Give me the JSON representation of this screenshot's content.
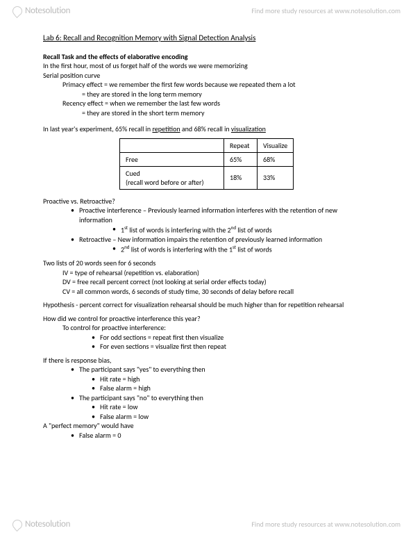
{
  "watermark": {
    "logo_name": "Notesolution",
    "tagline": "Find more study resources at www.notesolution.com"
  },
  "title": "Lab 6: Recall and Recognition Memory with Signal Detection Analysis",
  "recall_section": {
    "heading": "Recall Task and the effects of elaborative encoding",
    "line1": "In the first hour, most of us forget half of the words we were memorizing",
    "line2": "Serial position curve",
    "primacy1": "Primacy effect = we remember the first few words because we repeated them  a lot",
    "primacy2": "= they are stored in the long term memory",
    "recency1": "Recency effect = when we remember the last few words",
    "recency2": "= they are stored in the short term memory"
  },
  "experiment_line_pre": "In last year's experiment, 65% recall in ",
  "experiment_u1": "repetition",
  "experiment_mid": " and 68% recall in ",
  "experiment_u2": "visualization",
  "table": {
    "col1": "Repeat",
    "col2": "Visualize",
    "row1_label": "Free",
    "row1_c1": "65%",
    "row1_c2": "68%",
    "row2_label_l1": "Cued",
    "row2_label_l2": "(recall word before or after)",
    "row2_c1": "18%",
    "row2_c2": "33%"
  },
  "proactive_heading": "Proactive vs. Retroactive?",
  "pro1": "Proactive interference – Previously learned information interferes with the retention of new information",
  "pro1_sub_pre": "1",
  "pro1_sub_suf": "st",
  "pro1_sub_mid": " list of words is interfering with the 2",
  "pro1_sub_suf2": "nd",
  "pro1_sub_end": " list of words",
  "retro1": "Retroactive – New information impairs the retention of previously learned information",
  "retro1_sub_pre": "2",
  "retro1_sub_suf": "nd",
  "retro1_sub_mid": " list of words is interfering with the 1",
  "retro1_sub_suf2": "st",
  "retro1_sub_end": " list of words",
  "design_head": "Two lists of 20 words seen for 6 seconds",
  "design_iv": "IV = type of rehearsal (repetition vs. elaboration)",
  "design_dv": "DV = free recall percent correct (not looking at serial order effects today)",
  "design_cv": "CV = all common words, 6 seconds of study time, 30 seconds of delay before recall",
  "hypothesis": "Hypothesis - percent correct for visualization rehearsal should be much higher than for repetition rehearsal",
  "control_q": "How did we control for proactive interference this year?",
  "control_head": "To control for proactive interference:",
  "control_odd": "For odd sections = repeat first then visualize",
  "control_even": "For even sections = visualize first then repeat",
  "bias_head": "If there is response bias,",
  "bias_yes": "The participant says \"yes\" to everything then",
  "bias_yes_hit": "Hit rate = high",
  "bias_yes_fa": "False alarm = high",
  "bias_no": "The participant says \"no\" to everything then",
  "bias_no_hit": "Hit rate = low",
  "bias_no_fa": "False alarm = low",
  "perfect_head": "A \"perfect memory\" would have",
  "perfect_fa": "False alarm = 0"
}
